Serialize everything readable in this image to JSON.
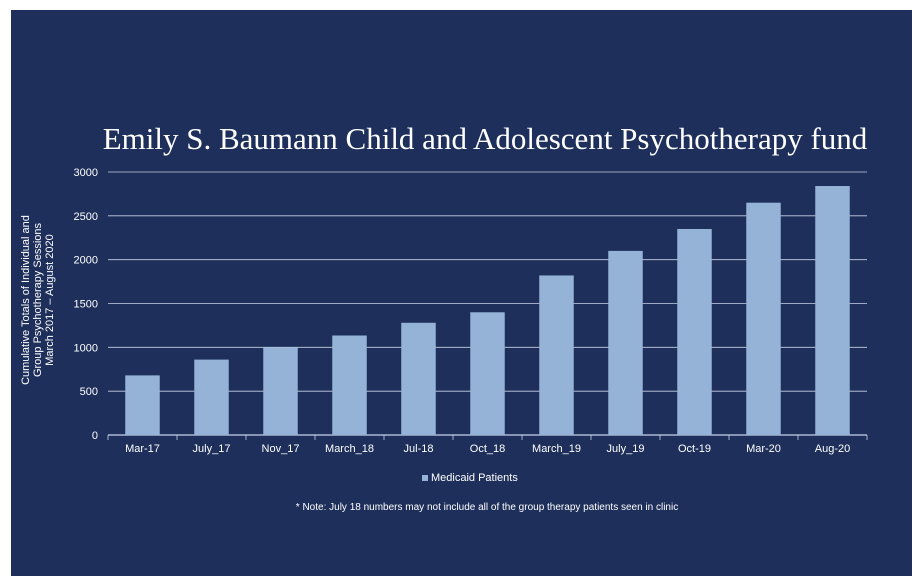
{
  "chart_data": {
    "type": "bar",
    "title": "Emily S. Baumann Child and Adolescent Psychotherapy  fund",
    "ylabel_lines": [
      "Cumulative Totals of Individual and",
      "Group Psychotherapy Sessions",
      "March 2017 – August 2020"
    ],
    "xlabel": "",
    "categories": [
      "Mar-17",
      "July_17",
      "Nov_17",
      "March_18",
      "Jul-18",
      "Oct_18",
      "March_19",
      "July_19",
      "Oct-19",
      "Mar-20",
      "Aug-20"
    ],
    "series": [
      {
        "name": "Medicaid Patients",
        "values": [
          680,
          860,
          1000,
          1135,
          1280,
          1400,
          1820,
          2100,
          2350,
          2650,
          2840
        ]
      }
    ],
    "ylim": [
      0,
      3000
    ],
    "yticks": [
      0,
      500,
      1000,
      1500,
      2000,
      2500,
      3000
    ],
    "grid": true,
    "legend_position": "bottom",
    "note": "* Note:  July 18 numbers may not include all of the group therapy patients  seen in clinic",
    "colors": {
      "background": "#1d2f5a",
      "bar": "#95b3d7",
      "text": "#ffffff",
      "grid": "#c8d2e6"
    }
  }
}
